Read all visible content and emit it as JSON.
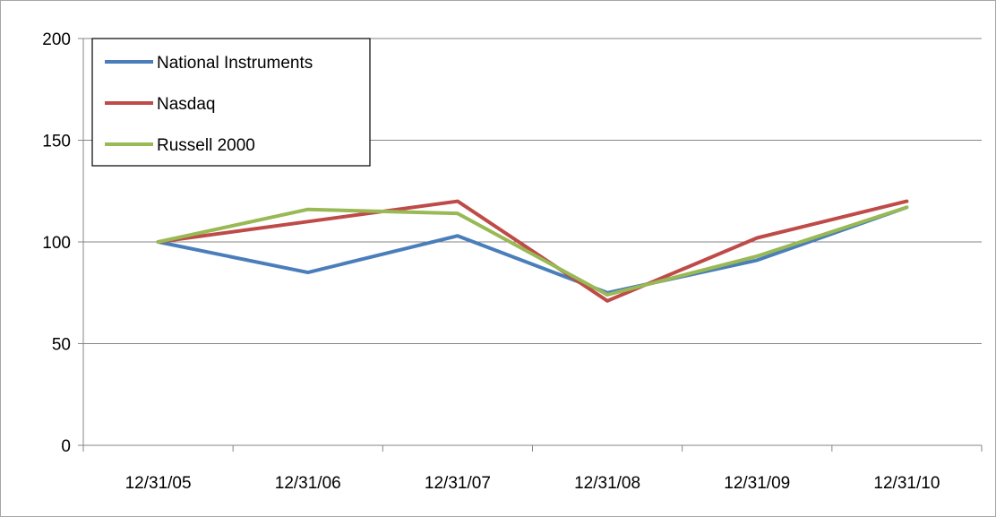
{
  "chart_data": {
    "type": "line",
    "title": "",
    "xlabel": "",
    "ylabel": "",
    "categories": [
      "12/31/05",
      "12/31/06",
      "12/31/07",
      "12/31/08",
      "12/31/09",
      "12/31/10"
    ],
    "ylim": [
      0,
      200
    ],
    "yticks": [
      0,
      50,
      100,
      150,
      200
    ],
    "grid": "horizontal major gridlines",
    "legend_position": "top-left",
    "series": [
      {
        "name": "National Instruments",
        "color": "#4a7ebb",
        "values": [
          100,
          85,
          103,
          75,
          91,
          117
        ]
      },
      {
        "name": "Nasdaq",
        "color": "#be4b48",
        "values": [
          100,
          110,
          120,
          71,
          102,
          120
        ]
      },
      {
        "name": "Russell 2000",
        "color": "#98b954",
        "values": [
          100,
          116,
          114,
          74,
          93,
          117
        ]
      }
    ]
  }
}
